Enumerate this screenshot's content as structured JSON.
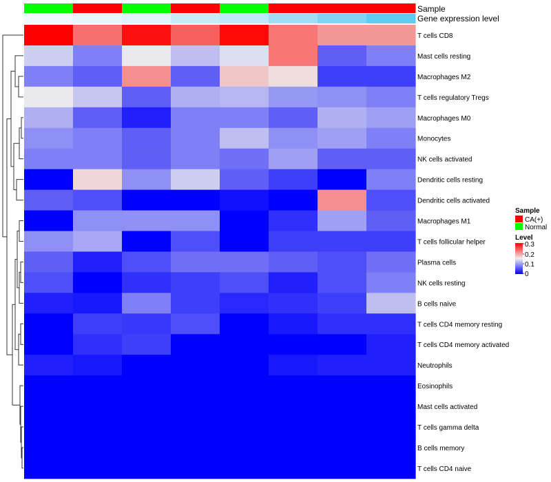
{
  "chart_data": {
    "type": "heatmap",
    "annotation_labels": {
      "sample": "Sample",
      "gene": "Gene expression level"
    },
    "rows": [
      "T cells CD8",
      "Mast cells resting",
      "Macrophages M2",
      "T cells regulatory  Tregs",
      "Macrophages M0",
      "Monocytes",
      "NK cells activated",
      "Dendritic cells resting",
      "Dendritic cells activated",
      "Macrophages M1",
      "T cells follicular helper",
      "Plasma cells",
      "NK cells resting",
      "B cells naive",
      "T cells CD4 memory resting",
      "T cells CD4 memory activated",
      "Neutrophils",
      "Eosinophils",
      "Mast cells activated",
      "T cells gamma delta",
      "B cells memory",
      "T cells CD4 naive"
    ],
    "column_samples": [
      "Normal",
      "CA(+)",
      "Normal",
      "CA(+)",
      "Normal",
      "CA(+)",
      "CA(+)",
      "CA(+)"
    ],
    "column_gene_level": [
      0.05,
      0.1,
      0.15,
      0.3,
      0.35,
      0.55,
      0.75,
      0.95
    ],
    "values": [
      [
        0.3,
        0.23,
        0.29,
        0.24,
        0.295,
        0.225,
        0.205,
        0.205
      ],
      [
        0.13,
        0.08,
        0.147,
        0.12,
        0.14,
        0.225,
        0.06,
        0.08
      ],
      [
        0.08,
        0.06,
        0.21,
        0.06,
        0.175,
        0.16,
        0.04,
        0.04
      ],
      [
        0.147,
        0.125,
        0.06,
        0.11,
        0.115,
        0.095,
        0.09,
        0.08
      ],
      [
        0.11,
        0.06,
        0.02,
        0.08,
        0.08,
        0.06,
        0.11,
        0.1
      ],
      [
        0.09,
        0.08,
        0.06,
        0.08,
        0.12,
        0.09,
        0.1,
        0.08
      ],
      [
        0.08,
        0.08,
        0.06,
        0.08,
        0.07,
        0.1,
        0.06,
        0.06
      ],
      [
        0.0,
        0.165,
        0.09,
        0.13,
        0.06,
        0.04,
        0.0,
        0.08
      ],
      [
        0.06,
        0.05,
        0.0,
        0.0,
        0.01,
        0.0,
        0.21,
        0.05
      ],
      [
        0.0,
        0.09,
        0.09,
        0.09,
        0.0,
        0.03,
        0.1,
        0.06
      ],
      [
        0.09,
        0.105,
        0.0,
        0.05,
        0.0,
        0.04,
        0.04,
        0.04
      ],
      [
        0.06,
        0.02,
        0.05,
        0.07,
        0.07,
        0.06,
        0.05,
        0.07
      ],
      [
        0.05,
        0.0,
        0.03,
        0.04,
        0.05,
        0.02,
        0.05,
        0.08
      ],
      [
        0.02,
        0.015,
        0.08,
        0.04,
        0.025,
        0.03,
        0.04,
        0.12
      ],
      [
        0.0,
        0.04,
        0.035,
        0.05,
        0.0,
        0.015,
        0.03,
        0.03
      ],
      [
        0.0,
        0.03,
        0.04,
        0.0,
        0.0,
        0.0,
        0.0,
        0.02
      ],
      [
        0.02,
        0.015,
        0.0,
        0.0,
        0.0,
        0.015,
        0.02,
        0.02
      ],
      [
        0.0,
        0.0,
        0.0,
        0.0,
        0.0,
        0.0,
        0.0,
        0.0
      ],
      [
        0.0,
        0.0,
        0.0,
        0.0,
        0.0,
        0.0,
        0.0,
        0.0
      ],
      [
        0.0,
        0.0,
        0.0,
        0.0,
        0.0,
        0.0,
        0.0,
        0.0
      ],
      [
        0.0,
        0.0,
        0.0,
        0.0,
        0.0,
        0.0,
        0.0,
        0.0
      ],
      [
        0.0,
        0.0,
        0.0,
        0.0,
        0.0,
        0.0,
        0.0,
        0.0
      ]
    ],
    "color_scale": {
      "stops": [
        {
          "value": 0,
          "color": "#0000ff"
        },
        {
          "value": 0.15,
          "color": "#eeeeee"
        },
        {
          "value": 0.3,
          "color": "#ff0000"
        }
      ],
      "range": [
        0,
        0.3
      ]
    },
    "sample_colors": {
      "CA(+)": "#ff0000",
      "Normal": "#00ff00"
    },
    "gene_colors": {
      "low": "#f7fbfd",
      "high": "#56c8f0"
    },
    "legend": {
      "sample_title": "Sample",
      "sample_entries": [
        "CA(+)",
        "Normal"
      ],
      "level_title": "Level",
      "level_ticks": [
        "0.3",
        "0.2",
        "0.1",
        "0"
      ]
    },
    "dendrogram": "hierarchical clustering of rows (left side)"
  }
}
